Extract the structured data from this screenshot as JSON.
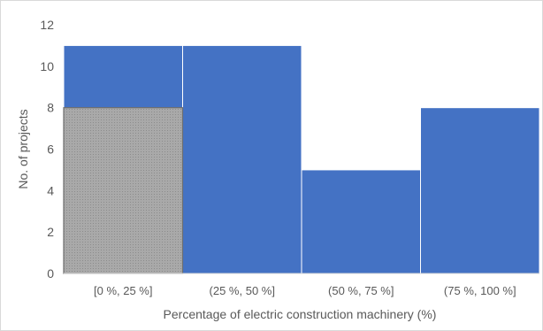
{
  "chart_data": {
    "type": "bar",
    "categories": [
      "[0 %, 25 %]",
      "(25 %, 50 %]",
      "(50 %, 75 %]",
      "(75 %, 100 %]"
    ],
    "series": [
      {
        "values": [
          11,
          11,
          5,
          8
        ],
        "color": "#4472c4"
      },
      {
        "values": [
          8,
          null,
          null,
          null
        ],
        "color": "#a6a6a6",
        "pattern": "dotted"
      }
    ],
    "overlap": true,
    "title": "",
    "xlabel": "Percentage of electric construction machinery (%)",
    "ylabel": "No. of projects",
    "ylim": [
      0,
      12
    ],
    "yticks": [
      0,
      2,
      4,
      6,
      8,
      10,
      12
    ],
    "grid": false,
    "legend": "none"
  }
}
